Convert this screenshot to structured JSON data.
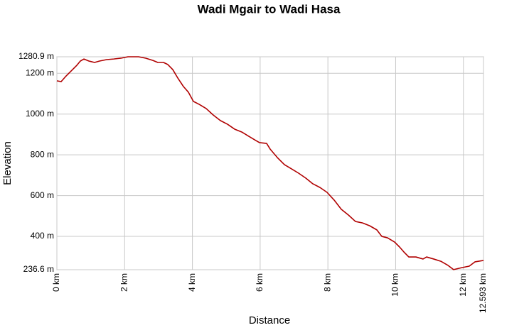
{
  "chart_data": {
    "type": "line",
    "title": "Wadi Mgair to Wadi Hasa",
    "x_label": "Distance",
    "y_label": "Elevation",
    "xlim": [
      0,
      12.593
    ],
    "ylim": [
      236.6,
      1280.9
    ],
    "xticks": [
      {
        "value": 0,
        "label": "0 km"
      },
      {
        "value": 2,
        "label": "2 km"
      },
      {
        "value": 4,
        "label": "4 km"
      },
      {
        "value": 6,
        "label": "6 km"
      },
      {
        "value": 8,
        "label": "8 km"
      },
      {
        "value": 10,
        "label": "10 km"
      },
      {
        "value": 12,
        "label": "12 km"
      },
      {
        "value": 12.593,
        "label": "12.593 km"
      }
    ],
    "yticks": [
      {
        "value": 236.6,
        "label": "236.6 m"
      },
      {
        "value": 400,
        "label": "400 m"
      },
      {
        "value": 600,
        "label": "600 m"
      },
      {
        "value": 800,
        "label": "800 m"
      },
      {
        "value": 1000,
        "label": "1000 m"
      },
      {
        "value": 1200,
        "label": "1200 m"
      },
      {
        "value": 1280.9,
        "label": "1280.9 m"
      }
    ],
    "grid": true,
    "color": "#b00000",
    "x": [
      0,
      0.126,
      0.252,
      0.42,
      0.588,
      0.693,
      0.797,
      0.944,
      1.112,
      1.259,
      1.469,
      1.679,
      1.889,
      2.099,
      2.413,
      2.623,
      2.833,
      2.98,
      3.148,
      3.274,
      3.421,
      3.568,
      3.736,
      3.883,
      4.03,
      4.197,
      4.407,
      4.617,
      4.827,
      5.037,
      5.247,
      5.456,
      5.666,
      5.876,
      5.981,
      6.191,
      6.296,
      6.506,
      6.716,
      6.926,
      7.135,
      7.345,
      7.555,
      7.765,
      7.975,
      8.185,
      8.395,
      8.604,
      8.814,
      9.024,
      9.234,
      9.444,
      9.591,
      9.759,
      9.969,
      10.115,
      10.241,
      10.388,
      10.598,
      10.808,
      10.913,
      11.123,
      11.333,
      11.543,
      11.71,
      11.962,
      12.172,
      12.34,
      12.593
    ],
    "values": [
      1163,
      1159,
      1183,
      1211,
      1239,
      1260,
      1270,
      1260,
      1253,
      1260,
      1267,
      1270,
      1274,
      1280.9,
      1280.9,
      1274,
      1263,
      1253,
      1253,
      1243,
      1218,
      1177,
      1135,
      1107,
      1062,
      1048,
      1027,
      995,
      968,
      950,
      926,
      912,
      891,
      870,
      860,
      856,
      828,
      787,
      752,
      731,
      710,
      686,
      658,
      640,
      616,
      578,
      533,
      505,
      473,
      466,
      452,
      432,
      400,
      393,
      372,
      348,
      324,
      299,
      299,
      289,
      299,
      289,
      278,
      258,
      237,
      247,
      254,
      275,
      282
    ]
  }
}
